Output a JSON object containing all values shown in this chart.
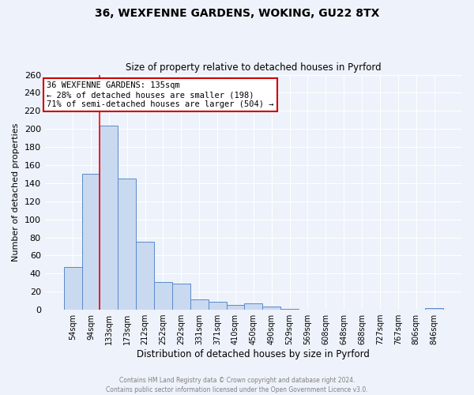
{
  "title1": "36, WEXFENNE GARDENS, WOKING, GU22 8TX",
  "title2": "Size of property relative to detached houses in Pyrford",
  "xlabel": "Distribution of detached houses by size in Pyrford",
  "ylabel": "Number of detached properties",
  "bar_labels": [
    "54sqm",
    "94sqm",
    "133sqm",
    "173sqm",
    "212sqm",
    "252sqm",
    "292sqm",
    "331sqm",
    "371sqm",
    "410sqm",
    "450sqm",
    "490sqm",
    "529sqm",
    "569sqm",
    "608sqm",
    "648sqm",
    "688sqm",
    "727sqm",
    "767sqm",
    "806sqm",
    "846sqm"
  ],
  "bar_values": [
    47,
    150,
    204,
    145,
    75,
    31,
    29,
    11,
    9,
    5,
    7,
    4,
    1,
    0,
    0,
    0,
    0,
    0,
    0,
    0,
    2
  ],
  "bar_color": "#c9d9f0",
  "bar_edge_color": "#5b8ac9",
  "ylim": [
    0,
    260
  ],
  "yticks": [
    0,
    20,
    40,
    60,
    80,
    100,
    120,
    140,
    160,
    180,
    200,
    220,
    240,
    260
  ],
  "red_line_index": 2,
  "annotation_title": "36 WEXFENNE GARDENS: 135sqm",
  "annotation_line1": "← 28% of detached houses are smaller (198)",
  "annotation_line2": "71% of semi-detached houses are larger (504) →",
  "footer1": "Contains HM Land Registry data © Crown copyright and database right 2024.",
  "footer2": "Contains public sector information licensed under the Open Government Licence v3.0.",
  "bg_color": "#eef2fa",
  "grid_color": "#ffffff",
  "annotation_box_color": "#ffffff",
  "annotation_box_edge": "#cc0000"
}
